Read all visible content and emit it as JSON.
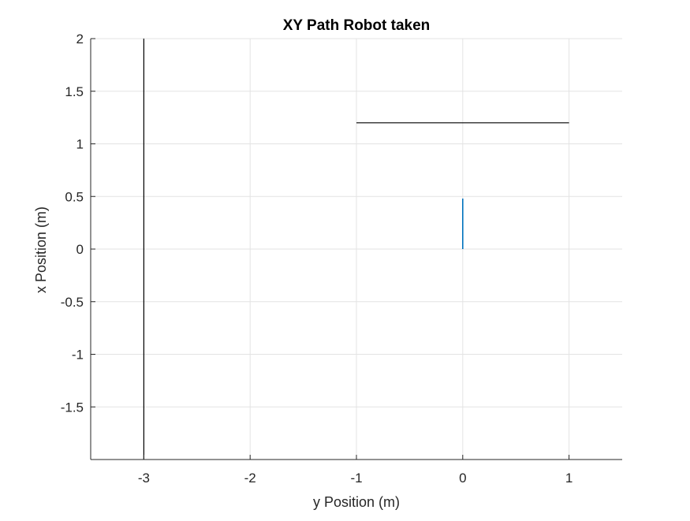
{
  "chart_data": {
    "type": "line",
    "title": "XY Path Robot taken",
    "xlabel": "y Position (m)",
    "ylabel": "x Position (m)",
    "xlim": [
      -3.5,
      1.5
    ],
    "ylim": [
      -2,
      2
    ],
    "xticks": [
      -3,
      -2,
      -1,
      0,
      1
    ],
    "xtick_labels": [
      "-3",
      "-2",
      "-1",
      "0",
      "1"
    ],
    "yticks": [
      2,
      1.5,
      1,
      0.5,
      0,
      -0.5,
      -1,
      -1.5
    ],
    "ytick_labels": [
      "2",
      "1.5",
      "1",
      "0.5",
      "0",
      "-0.5",
      "-1",
      "-1.5"
    ],
    "grid": true,
    "series": [
      {
        "x": [
          -3,
          -3
        ],
        "y": [
          -2,
          2
        ],
        "color": "#000000"
      },
      {
        "x": [
          -1,
          1
        ],
        "y": [
          1.2,
          1.2
        ],
        "color": "#000000"
      },
      {
        "x": [
          0,
          0
        ],
        "y": [
          0,
          0.48
        ],
        "color": "#0072BD"
      }
    ]
  }
}
